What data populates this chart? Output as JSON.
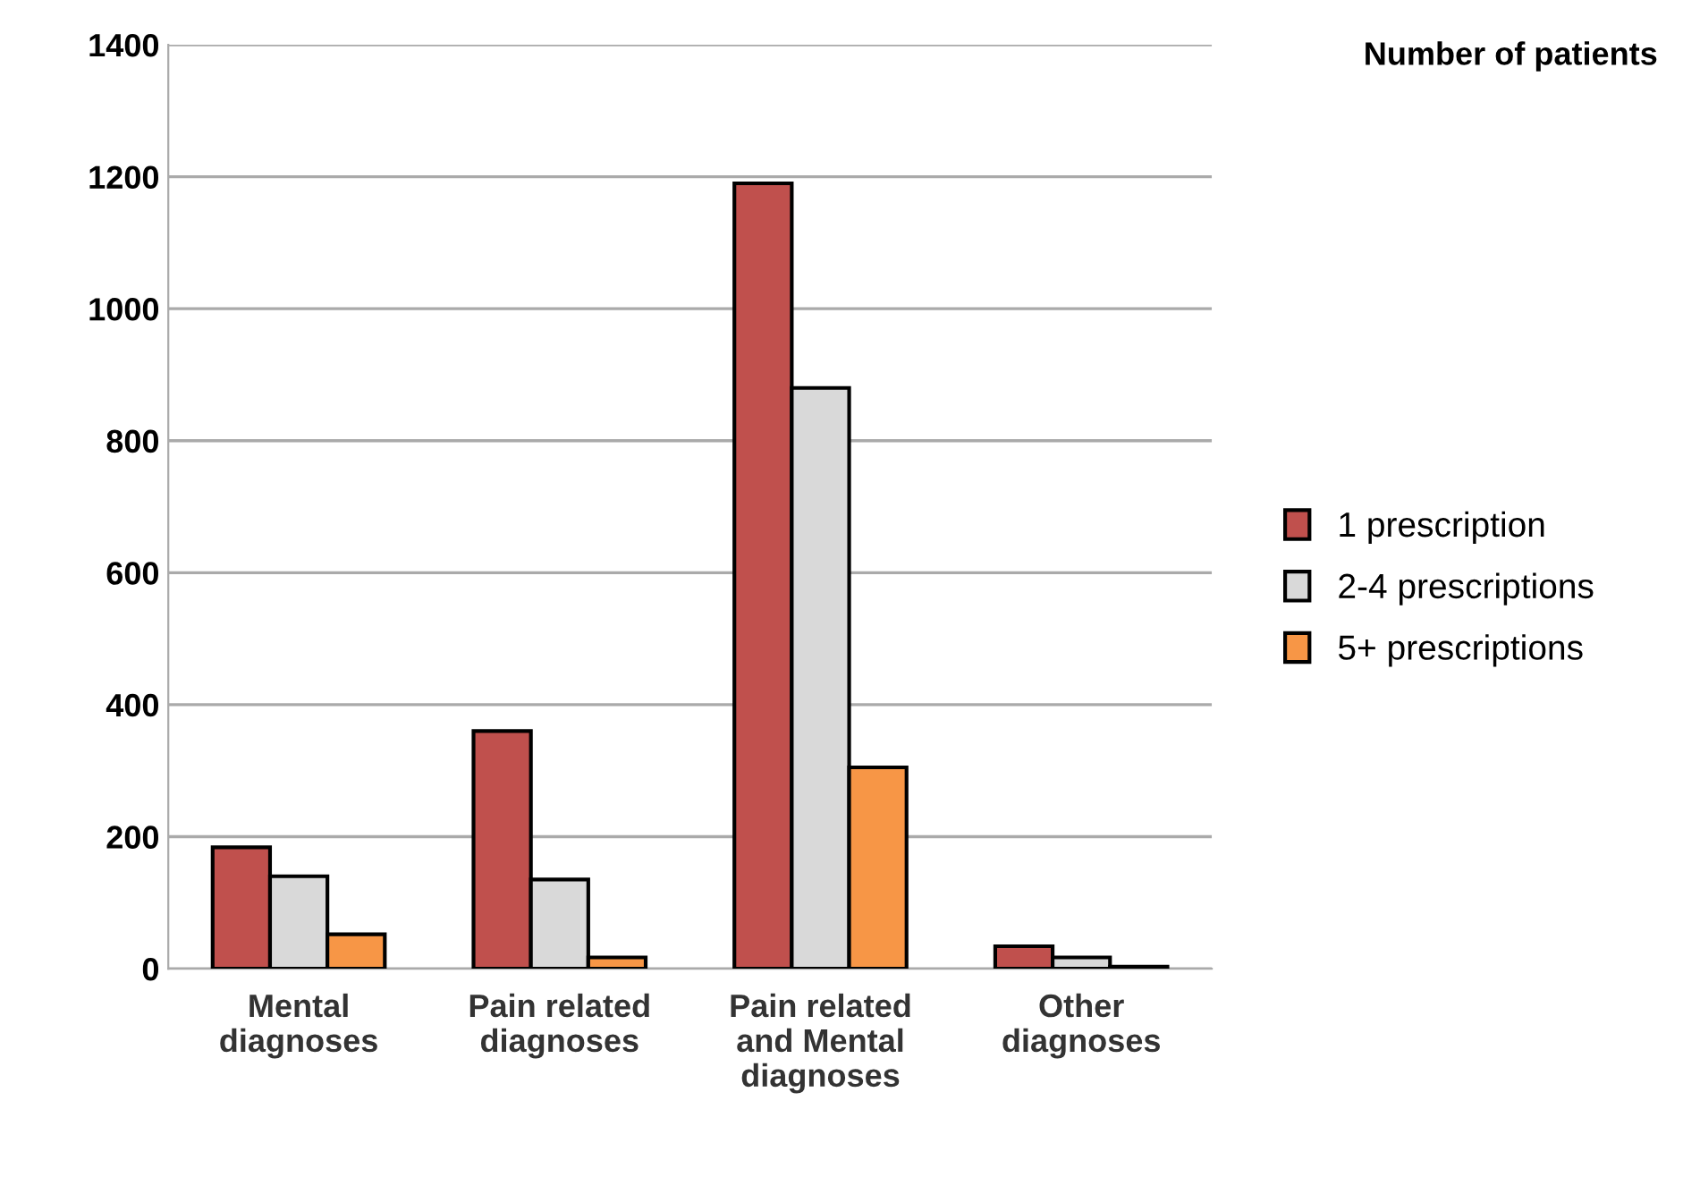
{
  "chart_data": {
    "type": "bar",
    "title": "Number of patients",
    "categories": [
      "Mental\ndiagnoses",
      "Pain related\ndiagnoses",
      "Pain related\nand Mental\ndiagnoses",
      "Other\ndiagnoses"
    ],
    "series": [
      {
        "name": "1 prescription",
        "color": "#c0504d",
        "values": [
          184,
          360,
          1190,
          34
        ]
      },
      {
        "name": "2-4 prescriptions",
        "color": "#d9d9d9",
        "values": [
          140,
          135,
          880,
          17
        ]
      },
      {
        "name": "5+ prescriptions",
        "color": "#f79646",
        "values": [
          52,
          17,
          305,
          3
        ]
      }
    ],
    "ylim": [
      0,
      1400
    ],
    "yticks": [
      0,
      200,
      400,
      600,
      800,
      1000,
      1200,
      1400
    ],
    "grid": "y",
    "legend": "right"
  }
}
